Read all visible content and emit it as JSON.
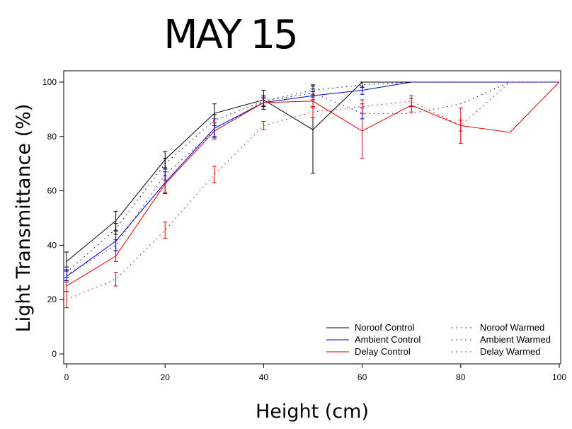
{
  "chart_data": {
    "type": "line",
    "title": "MAY 15",
    "xlabel": "Height (cm)",
    "ylabel": "Light Transmittance (%)",
    "xlim": [
      0,
      100
    ],
    "ylim": [
      -4,
      104
    ],
    "x_ticks": [
      0,
      20,
      40,
      60,
      80,
      100
    ],
    "y_ticks": [
      0,
      20,
      40,
      60,
      80,
      100
    ],
    "grid": false,
    "legend_position": "bottom-right",
    "series": [
      {
        "name": "Noroof Control",
        "color": "#000000",
        "style": "solid",
        "x": [
          0,
          10,
          20,
          30,
          40,
          50,
          60,
          70,
          80,
          90,
          100
        ],
        "y": [
          34,
          49,
          71.5,
          88.5,
          93.5,
          82.5,
          100,
          100,
          100,
          100,
          100
        ],
        "err": [
          3.5,
          3.5,
          3,
          3.5,
          3.5,
          16,
          0,
          0,
          0,
          0,
          0
        ]
      },
      {
        "name": "Ambient Control",
        "color": "#0000cc",
        "style": "solid",
        "x": [
          0,
          10,
          20,
          30,
          40,
          50,
          60,
          70,
          80,
          90,
          100
        ],
        "y": [
          28.5,
          41.5,
          63,
          83,
          92.5,
          95,
          97,
          100,
          100,
          100,
          100
        ],
        "err": [
          2,
          3.5,
          4,
          3.5,
          1.5,
          1.5,
          1.5,
          0,
          0,
          0,
          0
        ]
      },
      {
        "name": "Delay Control",
        "color": "#dd0000",
        "style": "solid",
        "x": [
          0,
          10,
          20,
          30,
          40,
          50,
          60,
          70,
          80,
          90,
          100
        ],
        "y": [
          25,
          36,
          62.5,
          82,
          92.5,
          93,
          82,
          91.5,
          84,
          81.5,
          100
        ],
        "err": [
          2,
          2,
          3,
          3,
          1.5,
          2.5,
          10,
          2.5,
          6.5,
          0,
          0
        ]
      },
      {
        "name": "Noroof Warmed",
        "color": "#000000",
        "style": "dotted",
        "x": [
          0,
          10,
          20,
          30,
          40,
          50,
          60,
          70,
          80,
          90,
          100
        ],
        "y": [
          30,
          46,
          70,
          86,
          93,
          97,
          99,
          100,
          100,
          100,
          100
        ],
        "err": [
          2,
          2,
          2,
          2,
          2,
          2,
          1,
          0,
          0,
          0,
          0
        ]
      },
      {
        "name": "Ambient Warmed",
        "color": "#0000cc",
        "style": "dotted",
        "x": [
          0,
          10,
          20,
          30,
          40,
          50,
          60,
          70,
          80,
          90,
          100
        ],
        "y": [
          29,
          40,
          66,
          82,
          93,
          96,
          88.5,
          88.5,
          92,
          100,
          100
        ],
        "err": [
          2,
          2,
          2,
          2,
          1.5,
          1.5,
          2,
          0,
          0,
          0,
          0
        ]
      },
      {
        "name": "Delay Warmed",
        "color": "#dd0000",
        "style": "dotted",
        "x": [
          0,
          10,
          20,
          30,
          40,
          50,
          60,
          70,
          80,
          90,
          100
        ],
        "y": [
          20,
          27.5,
          45.5,
          66,
          84,
          89,
          91,
          93,
          84,
          100,
          100
        ],
        "err": [
          3,
          2.5,
          3,
          3,
          1.5,
          2,
          2.5,
          2,
          2,
          0,
          0
        ]
      }
    ]
  }
}
